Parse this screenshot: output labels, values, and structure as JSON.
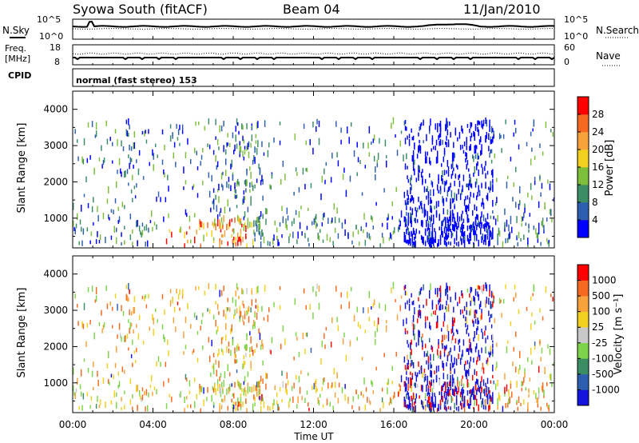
{
  "header": {
    "station": "Syowa South (fitACF)",
    "beam": "Beam 04",
    "date": "11/Jan/2010"
  },
  "noise_panel": {
    "left_label": "N.Sky",
    "left_ticks": [
      "10^5",
      "10^0"
    ],
    "right_ticks": [
      "10^5",
      "10^0"
    ],
    "right_label": "N.Search"
  },
  "freq_panel": {
    "left_label_1": "Freq.",
    "left_label_2": "[MHz]",
    "left_ticks": [
      "18",
      "8"
    ],
    "right_ticks": [
      "60",
      "0"
    ],
    "right_label": "Nave"
  },
  "cpid_panel": {
    "label": "CPID",
    "mode_text": "normal (fast stereo) 153"
  },
  "chart_data": [
    {
      "type": "heatmap",
      "name": "power",
      "ylabel": "Slant Range [km]",
      "xlabel": "",
      "ylim": [
        180,
        4500
      ],
      "yticks": [
        1000,
        2000,
        3000,
        4000
      ],
      "x_tick_labels": [
        "00:00",
        "04:00",
        "08:00",
        "12:00",
        "16:00",
        "20:00",
        "00:00"
      ],
      "x_hours": [
        0,
        4,
        8,
        12,
        16,
        20,
        24
      ],
      "colorbar": {
        "label": "Power [dB]",
        "ticks": [
          "28",
          "24",
          "20",
          "16",
          "12",
          "8",
          "4"
        ],
        "colors": [
          "#0000ff",
          "#2e5fae",
          "#3c8c64",
          "#7dbe3a",
          "#f2d020",
          "#f7a23a",
          "#f56a20",
          "#ff0000"
        ]
      }
    },
    {
      "type": "heatmap",
      "name": "velocity",
      "ylabel": "Slant Range [km]",
      "xlabel": "Time UT",
      "ylim": [
        180,
        4500
      ],
      "yticks": [
        1000,
        2000,
        3000,
        4000
      ],
      "x_tick_labels": [
        "00:00",
        "04:00",
        "08:00",
        "12:00",
        "16:00",
        "20:00",
        "00:00"
      ],
      "x_hours": [
        0,
        4,
        8,
        12,
        16,
        20,
        24
      ],
      "colorbar": {
        "label": "Velocity [m s⁻¹]",
        "ticks": [
          "1000",
          "500",
          "100",
          "25",
          "-25",
          "-100",
          "-500",
          "-1000"
        ],
        "colors": [
          "#1414dc",
          "#2e5fae",
          "#3c8c64",
          "#7dd44a",
          "#c8c8c8",
          "#f2d020",
          "#f7a23a",
          "#f56a20",
          "#ff0000"
        ]
      }
    }
  ],
  "colors": {
    "axis": "#000000",
    "background": "#ffffff"
  }
}
